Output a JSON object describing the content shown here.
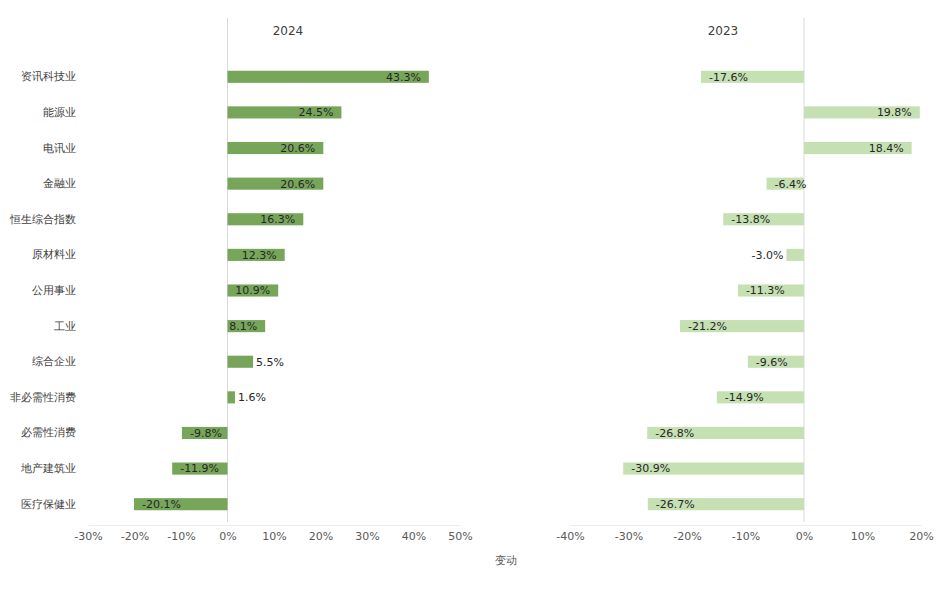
{
  "chart_data": [
    {
      "type": "bar",
      "title": "2024",
      "orientation": "horizontal",
      "categories": [
        "资讯科技业",
        "能源业",
        "电讯业",
        "金融业",
        "恒生综合指数",
        "原材料业",
        "公用事业",
        "工业",
        "综合企业",
        "非必需性消费",
        "必需性消费",
        "地产建筑业",
        "医疗保健业"
      ],
      "values": [
        43.3,
        24.5,
        20.6,
        20.6,
        16.3,
        12.3,
        10.9,
        8.1,
        5.5,
        1.6,
        -9.8,
        -11.9,
        -20.1
      ],
      "value_labels": [
        "43.3%",
        "24.5%",
        "20.6%",
        "20.6%",
        "16.3%",
        "12.3%",
        "10.9%",
        "8.1%",
        "5.5%",
        "1.6%",
        "-9.8%",
        "-11.9%",
        "-20.1%"
      ],
      "color": "#77a65a",
      "xlim": [
        -30,
        50
      ],
      "xticks": [
        {
          "value": -30,
          "label": "-30%"
        },
        {
          "value": -20,
          "label": "-20%"
        },
        {
          "value": -10,
          "label": "-10%"
        },
        {
          "value": 0,
          "label": "0%"
        },
        {
          "value": 10,
          "label": "10%"
        },
        {
          "value": 20,
          "label": "20%"
        },
        {
          "value": 30,
          "label": "30%"
        },
        {
          "value": 40,
          "label": "40%"
        },
        {
          "value": 50,
          "label": "50%"
        }
      ],
      "data_labels": true,
      "x_label": "变动"
    },
    {
      "type": "bar",
      "title": "2023",
      "orientation": "horizontal",
      "categories": [
        null,
        null,
        null,
        null,
        null,
        null,
        null,
        null,
        null,
        null,
        null,
        null,
        null
      ],
      "values": [
        -17.6,
        19.8,
        18.4,
        -6.4,
        -13.8,
        -3.0,
        -11.3,
        -21.2,
        -9.6,
        -14.9,
        -26.8,
        -30.9,
        -26.7
      ],
      "value_labels": [
        "-17.6%",
        "19.8%",
        "18.4%",
        "-6.4%",
        "-13.8%",
        "-3.0%",
        "-11.3%",
        "-21.2%",
        "-9.6%",
        "-14.9%",
        "-26.8%",
        "-30.9%",
        "-26.7%"
      ],
      "color": "#c5e0b3",
      "xlim": [
        -40,
        20
      ],
      "xticks": [
        {
          "value": -40,
          "label": "-40%"
        },
        {
          "value": -30,
          "label": "-30%"
        },
        {
          "value": -20,
          "label": "-20%"
        },
        {
          "value": -10,
          "label": "-10%"
        },
        {
          "value": 0,
          "label": "0%"
        },
        {
          "value": 10,
          "label": "10%"
        },
        {
          "value": 20,
          "label": "20%"
        }
      ],
      "data_labels": true,
      "tick_labels": "x"
    }
  ]
}
